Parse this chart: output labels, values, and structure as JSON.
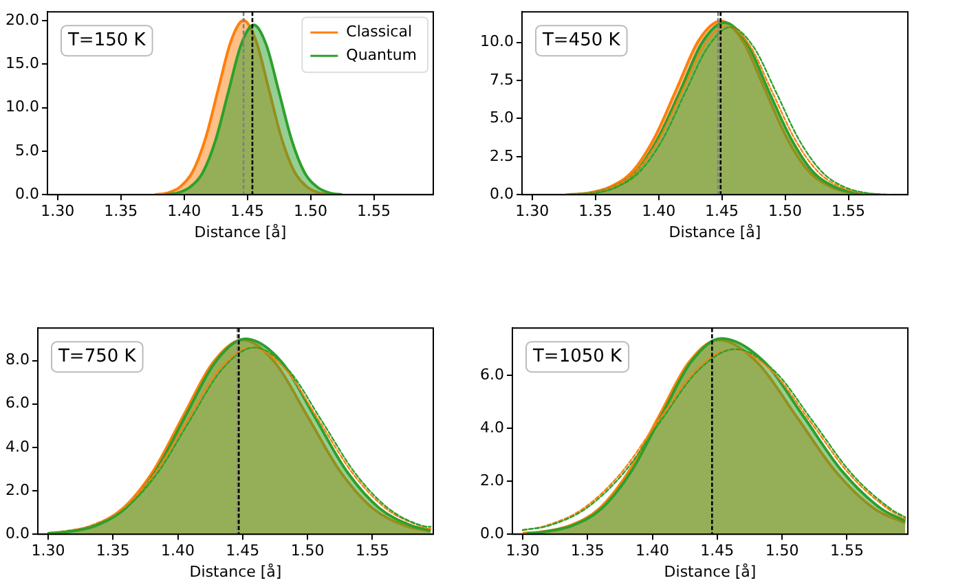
{
  "chart_data": [
    {
      "type": "area",
      "xlabel": "Distance [å]",
      "xlim": [
        1.292,
        1.597
      ],
      "xticks": [
        {
          "value": 1.3,
          "label": "1.30"
        },
        1.35,
        {
          "value": 1.4,
          "label": "1.40"
        },
        1.45,
        {
          "value": 1.5,
          "label": "1.50"
        },
        1.55
      ],
      "ylim": [
        0,
        21
      ],
      "yticks": [
        {
          "value": 0,
          "label": "0.0"
        },
        {
          "value": 5,
          "label": "5.0"
        },
        {
          "value": 10,
          "label": "10.0"
        },
        {
          "value": 15,
          "label": "15.0"
        },
        {
          "value": 20,
          "label": "20.0"
        }
      ],
      "grid": false,
      "legend": "top right",
      "annotations": [
        "T=150 K"
      ],
      "ref_lines": [
        {
          "axis": "x",
          "value": 1.447,
          "color": "#808080",
          "line_style": "dashed"
        },
        {
          "axis": "x",
          "value": 1.454,
          "color": "#000000",
          "line_style": "dashed"
        }
      ],
      "series": [
        {
          "name": "Classical",
          "color": "#ff7f0e",
          "x": [
            1.377,
            1.387,
            1.397,
            1.407,
            1.417,
            1.427,
            1.437,
            1.447,
            1.457,
            1.467,
            1.477,
            1.487,
            1.497,
            1.507,
            1.517
          ],
          "values": [
            0.0,
            0.2,
            0.9,
            2.7,
            6.5,
            12.1,
            17.6,
            20.0,
            17.6,
            12.1,
            6.5,
            2.7,
            0.9,
            0.2,
            0.0
          ]
        },
        {
          "name": "Quantum",
          "color": "#2ca02c",
          "x": [
            1.385,
            1.395,
            1.405,
            1.415,
            1.425,
            1.435,
            1.445,
            1.455,
            1.465,
            1.475,
            1.485,
            1.495,
            1.505,
            1.515,
            1.525
          ],
          "values": [
            0.0,
            0.2,
            0.9,
            2.6,
            6.3,
            11.8,
            17.2,
            19.5,
            17.2,
            11.8,
            6.3,
            2.6,
            0.9,
            0.2,
            0.0
          ]
        }
      ]
    },
    {
      "type": "area",
      "xlabel": "Distance [å]",
      "xlim": [
        1.292,
        1.597
      ],
      "xticks": [
        {
          "value": 1.3,
          "label": "1.30"
        },
        1.35,
        {
          "value": 1.4,
          "label": "1.40"
        },
        1.45,
        {
          "value": 1.5,
          "label": "1.50"
        },
        1.55
      ],
      "ylim": [
        0,
        12
      ],
      "yticks": [
        {
          "value": 0,
          "label": "0.0"
        },
        2.5,
        {
          "value": 5,
          "label": "5.0"
        },
        7.5,
        {
          "value": 10,
          "label": "10.0"
        }
      ],
      "grid": false,
      "annotations": [
        "T=450 K"
      ],
      "ref_lines": [
        {
          "axis": "x",
          "value": 1.447,
          "color": "#808080",
          "line_style": "dashed"
        },
        {
          "axis": "x",
          "value": 1.449,
          "color": "#000000",
          "line_style": "dashed"
        }
      ],
      "series": [
        {
          "color": "#ff7f0e",
          "x": [
            1.3265,
            1.344,
            1.3615,
            1.379,
            1.3965,
            1.414,
            1.4315,
            1.449,
            1.4665,
            1.484,
            1.5015,
            1.519,
            1.5365,
            1.554,
            1.5715
          ],
          "values": [
            0.0,
            0.1,
            0.5,
            1.5,
            3.7,
            6.9,
            10.1,
            11.4,
            10.1,
            6.9,
            3.7,
            1.5,
            0.5,
            0.1,
            0.0
          ]
        },
        {
          "color": "#2ca02c",
          "x": [
            1.3295,
            1.347,
            1.3645,
            1.382,
            1.3995,
            1.417,
            1.4345,
            1.452,
            1.4695,
            1.487,
            1.5045,
            1.522,
            1.5395,
            1.557,
            1.5745
          ],
          "values": [
            0.0,
            0.1,
            0.5,
            1.5,
            3.7,
            6.8,
            10.0,
            11.3,
            10.0,
            6.8,
            3.7,
            1.5,
            0.5,
            0.1,
            0.0
          ]
        },
        {
          "type": "line",
          "line_style": "dashed",
          "color": "#ff7f0e",
          "x": [
            1.328,
            1.346,
            1.364,
            1.382,
            1.4,
            1.418,
            1.436,
            1.454,
            1.472,
            1.49,
            1.508,
            1.526,
            1.544,
            1.562,
            1.58
          ],
          "values": [
            0.0,
            0.1,
            0.5,
            1.5,
            3.6,
            6.7,
            9.8,
            11.1,
            9.8,
            6.7,
            3.6,
            1.5,
            0.5,
            0.1,
            0.0
          ]
        },
        {
          "type": "line",
          "line_style": "dashed",
          "color": "#2ca02c",
          "x": [
            1.331,
            1.349,
            1.367,
            1.385,
            1.403,
            1.421,
            1.439,
            1.457,
            1.475,
            1.493,
            1.511,
            1.529,
            1.547,
            1.565,
            1.583
          ],
          "values": [
            0.0,
            0.1,
            0.5,
            1.5,
            3.6,
            6.7,
            9.7,
            11.0,
            9.7,
            6.7,
            3.6,
            1.5,
            0.5,
            0.1,
            0.0
          ]
        }
      ]
    },
    {
      "type": "area",
      "xlabel": "Distance [å]",
      "xlim": [
        1.292,
        1.597
      ],
      "xticks": [
        {
          "value": 1.3,
          "label": "1.30"
        },
        1.35,
        {
          "value": 1.4,
          "label": "1.40"
        },
        1.45,
        {
          "value": 1.5,
          "label": "1.50"
        },
        1.55
      ],
      "ylim": [
        0,
        9.5
      ],
      "yticks": [
        {
          "value": 0,
          "label": "0.0"
        },
        {
          "value": 2,
          "label": "2.0"
        },
        {
          "value": 4,
          "label": "4.0"
        },
        {
          "value": 6,
          "label": "6.0"
        },
        {
          "value": 8,
          "label": "8.0"
        }
      ],
      "grid": false,
      "annotations": [
        "T=750 K"
      ],
      "ref_lines": [
        {
          "axis": "x",
          "value": 1.446,
          "color": "#808080",
          "line_style": "dashed"
        },
        {
          "axis": "x",
          "value": 1.447,
          "color": "#000000",
          "line_style": "dashed"
        }
      ],
      "series": [
        {
          "color": "#ff7f0e",
          "x": [
            1.3,
            1.312,
            1.335,
            1.358,
            1.381,
            1.404,
            1.427,
            1.45,
            1.475,
            1.5,
            1.525,
            1.55,
            1.575,
            1.595
          ],
          "values": [
            0.05,
            0.1,
            0.4,
            1.21,
            2.91,
            5.43,
            7.9,
            8.95,
            7.9,
            5.43,
            2.91,
            1.21,
            0.4,
            0.14
          ]
        },
        {
          "color": "#2ca02c",
          "x": [
            1.302,
            1.314,
            1.337,
            1.36,
            1.383,
            1.406,
            1.429,
            1.452,
            1.48,
            1.505,
            1.53,
            1.555,
            1.58,
            1.595
          ],
          "values": [
            0.04,
            0.1,
            0.4,
            1.22,
            2.92,
            5.46,
            7.94,
            9.0,
            7.94,
            5.46,
            2.92,
            1.22,
            0.4,
            0.18
          ]
        },
        {
          "type": "line",
          "line_style": "dashed",
          "color": "#ff7f0e",
          "x": [
            1.3,
            1.307,
            1.332,
            1.357,
            1.382,
            1.407,
            1.432,
            1.457,
            1.483,
            1.509,
            1.535,
            1.561,
            1.587,
            1.595
          ],
          "values": [
            0.06,
            0.1,
            0.38,
            1.16,
            2.79,
            5.22,
            7.59,
            8.6,
            7.59,
            5.22,
            2.79,
            1.16,
            0.38,
            0.24
          ]
        },
        {
          "type": "line",
          "line_style": "dashed",
          "color": "#2ca02c",
          "x": [
            1.3,
            1.309,
            1.334,
            1.359,
            1.384,
            1.409,
            1.434,
            1.459,
            1.485,
            1.511,
            1.537,
            1.563,
            1.589,
            1.595
          ],
          "values": [
            0.06,
            0.1,
            0.38,
            1.16,
            2.79,
            5.22,
            7.59,
            8.6,
            7.59,
            5.22,
            2.79,
            1.16,
            0.38,
            0.34
          ]
        }
      ]
    },
    {
      "type": "area",
      "xlabel": "Distance [å]",
      "xlim": [
        1.292,
        1.597
      ],
      "xticks": [
        {
          "value": 1.3,
          "label": "1.30"
        },
        1.35,
        {
          "value": 1.4,
          "label": "1.40"
        },
        1.45,
        {
          "value": 1.5,
          "label": "1.50"
        },
        1.55
      ],
      "ylim": [
        0,
        7.8
      ],
      "yticks": [
        {
          "value": 0,
          "label": "0.0"
        },
        {
          "value": 2,
          "label": "2.0"
        },
        {
          "value": 4,
          "label": "4.0"
        },
        {
          "value": 6,
          "label": "6.0"
        }
      ],
      "grid": false,
      "annotations": [
        "T=1050 K"
      ],
      "ref_lines": [
        {
          "axis": "x",
          "value": 1.446,
          "color": "#000000",
          "line_style": "dashed"
        }
      ],
      "series": [
        {
          "color": "#ff7f0e",
          "x": [
            1.3,
            1.313,
            1.336,
            1.359,
            1.382,
            1.405,
            1.428,
            1.451,
            1.481,
            1.511,
            1.541,
            1.571,
            1.595
          ],
          "values": [
            0.04,
            0.08,
            0.32,
            0.97,
            2.39,
            4.46,
            6.49,
            7.35,
            6.49,
            4.46,
            2.39,
            0.97,
            0.42
          ]
        },
        {
          "color": "#2ca02c",
          "x": [
            1.303,
            1.315,
            1.338,
            1.361,
            1.384,
            1.407,
            1.43,
            1.453,
            1.486,
            1.516,
            1.546,
            1.576,
            1.595
          ],
          "values": [
            0.03,
            0.08,
            0.32,
            0.98,
            2.4,
            4.49,
            6.53,
            7.4,
            6.53,
            4.49,
            2.4,
            0.98,
            0.5
          ]
        },
        {
          "type": "line",
          "line_style": "dashed",
          "color": "#ff7f0e",
          "x": [
            1.3,
            1.317,
            1.346,
            1.375,
            1.404,
            1.433,
            1.462,
            1.492,
            1.522,
            1.552,
            1.582,
            1.595
          ],
          "values": [
            0.15,
            0.31,
            0.95,
            2.27,
            4.25,
            6.18,
            7.0,
            6.18,
            4.25,
            2.27,
            0.95,
            0.59
          ]
        },
        {
          "type": "line",
          "line_style": "dashed",
          "color": "#2ca02c",
          "x": [
            1.3,
            1.319,
            1.348,
            1.377,
            1.406,
            1.435,
            1.464,
            1.494,
            1.524,
            1.554,
            1.584,
            1.595
          ],
          "values": [
            0.16,
            0.31,
            0.95,
            2.27,
            4.25,
            6.18,
            7.0,
            6.18,
            4.25,
            2.27,
            0.95,
            0.64
          ]
        }
      ]
    }
  ]
}
